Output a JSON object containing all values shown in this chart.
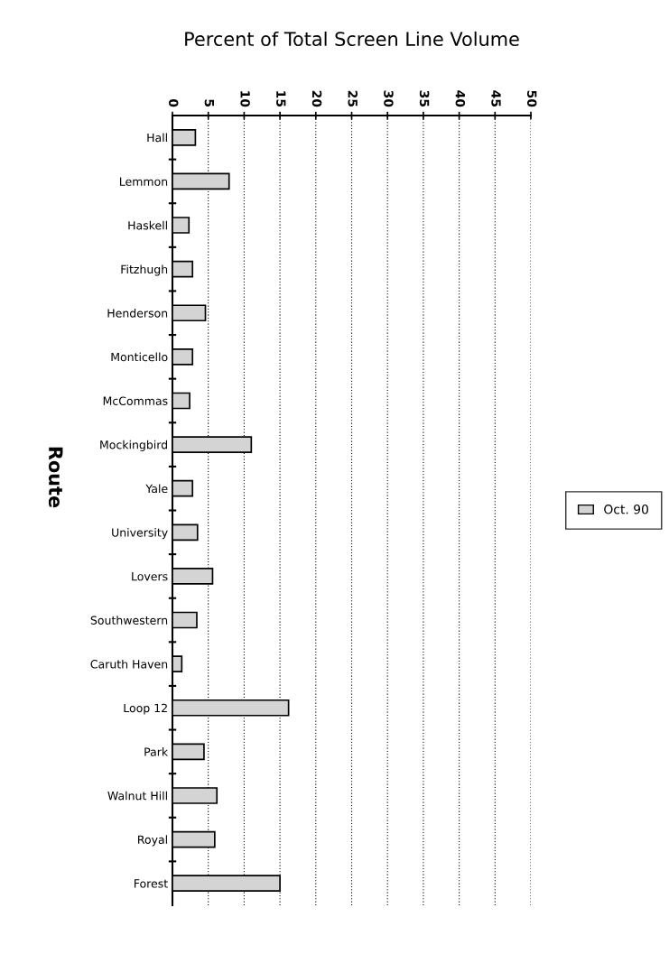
{
  "chart_data": {
    "type": "bar",
    "orientation": "horizontal",
    "title": "Percent of Total Screen Line Volume",
    "ylabel": "Route",
    "categories": [
      "Hall",
      "Lemmon",
      "Haskell",
      "Fitzhugh",
      "Henderson",
      "Monticello",
      "McCommas",
      "Mockingbird",
      "Yale",
      "University",
      "Lovers",
      "Southwestern",
      "Caruth Haven",
      "Loop 12",
      "Park",
      "Walnut Hill",
      "Royal",
      "Forest"
    ],
    "series": [
      {
        "name": "Oct. 90",
        "color": "#d4d4d4",
        "values": [
          3.2,
          7.9,
          2.3,
          2.8,
          4.6,
          2.8,
          2.4,
          11.0,
          2.8,
          3.5,
          5.6,
          3.4,
          1.3,
          16.2,
          4.4,
          6.2,
          5.9,
          15.0
        ]
      }
    ],
    "xlim": [
      0,
      50
    ],
    "xticks": [
      0,
      5,
      10,
      15,
      20,
      25,
      30,
      35,
      40,
      45,
      50
    ],
    "grid": "x",
    "legend": "right"
  }
}
